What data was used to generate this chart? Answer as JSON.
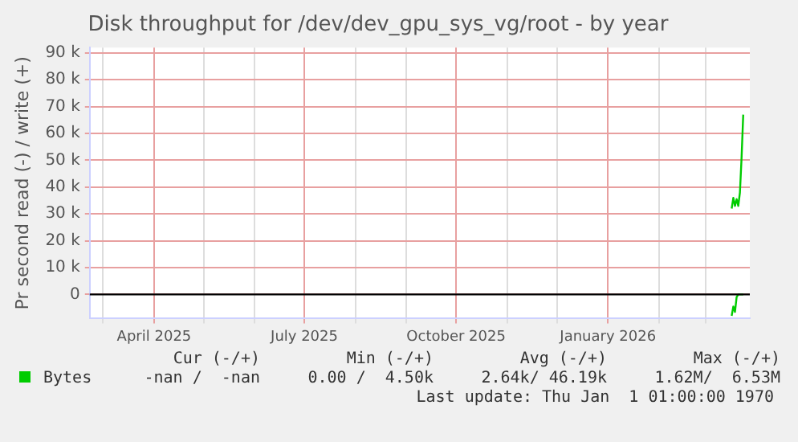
{
  "chart_data": {
    "type": "line",
    "title": "Disk throughput for /dev/dev_gpu_sys_vg/root - by year",
    "ylabel": "Pr second read (-) / write (+)",
    "series": [
      {
        "name": "Bytes",
        "color": "#00cc00",
        "x": [
          "2026-03-17",
          "2026-03-18",
          "2026-03-19",
          "2026-03-20",
          "2026-03-21",
          "2026-03-22",
          "2026-03-23",
          "2026-03-24"
        ],
        "values": [
          32000,
          36000,
          33000,
          35500,
          33000,
          38000,
          51000,
          67000
        ]
      },
      {
        "color": "#00cc00",
        "x": [
          "2026-03-17",
          "2026-03-18",
          "2026-03-19",
          "2026-03-20",
          "2026-03-21",
          "2026-03-23",
          "2026-03-24"
        ],
        "values": [
          -8000,
          -4500,
          -6500,
          -1000,
          0,
          0,
          0
        ]
      }
    ],
    "xlim": [
      "2025-02-21",
      "2026-03-28"
    ],
    "xticks": [
      {
        "value": "2025-03",
        "label": null
      },
      {
        "value": "2025-04",
        "label": "April 2025"
      },
      {
        "value": "2025-05",
        "label": null
      },
      {
        "value": "2025-06",
        "label": null
      },
      {
        "value": "2025-07",
        "label": "July 2025"
      },
      {
        "value": "2025-08",
        "label": null
      },
      {
        "value": "2025-09",
        "label": null
      },
      {
        "value": "2025-10",
        "label": "October 2025"
      },
      {
        "value": "2025-11",
        "label": null
      },
      {
        "value": "2025-12",
        "label": null
      },
      {
        "value": "2026-01",
        "label": "January 2026"
      },
      {
        "value": "2026-02",
        "label": null
      },
      {
        "value": "2026-03",
        "label": null
      }
    ],
    "ylim": [
      -9000,
      92000
    ],
    "yticks": [
      0,
      {
        "value": 10000,
        "label": "10 k"
      },
      {
        "value": 20000,
        "label": "20 k"
      },
      {
        "value": 30000,
        "label": "30 k"
      },
      {
        "value": 40000,
        "label": "40 k"
      },
      {
        "value": 50000,
        "label": "50 k"
      },
      {
        "value": 60000,
        "label": "60 k"
      },
      {
        "value": 70000,
        "label": "70 k"
      },
      {
        "value": 80000,
        "label": "80 k"
      },
      {
        "value": 90000,
        "label": "90 k"
      }
    ],
    "ref_lines": [
      {
        "axis": "y",
        "value": 0,
        "color": "#000000"
      }
    ],
    "grid": true,
    "legend": "bottom left",
    "marker": "none",
    "line_style": "solid",
    "annotations": [
      "Cur (-/+)",
      "Min (-/+)",
      "Avg (-/+)",
      "Max (-/+)",
      "-nan /  -nan",
      "0.00 /  4.50k",
      "2.64k/ 46.19k",
      "1.62M/  6.53M",
      "Last update: Thu Jan  1 01:00:00 1970"
    ]
  }
}
